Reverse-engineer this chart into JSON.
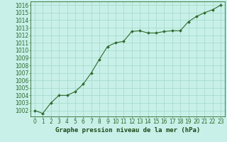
{
  "x": [
    0,
    1,
    2,
    3,
    4,
    5,
    6,
    7,
    8,
    9,
    10,
    11,
    12,
    13,
    14,
    15,
    16,
    17,
    18,
    19,
    20,
    21,
    22,
    23
  ],
  "y": [
    1002.0,
    1001.6,
    1003.0,
    1004.0,
    1004.0,
    1004.5,
    1005.5,
    1007.0,
    1008.8,
    1010.5,
    1011.0,
    1011.2,
    1012.5,
    1012.6,
    1012.3,
    1012.3,
    1012.5,
    1012.6,
    1012.6,
    1013.8,
    1014.5,
    1015.0,
    1015.4,
    1016.0
  ],
  "line_color": "#2d6a2d",
  "marker_color": "#2d6a2d",
  "bg_color": "#c8f0e8",
  "grid_color": "#a0d8c8",
  "xlabel": "Graphe pression niveau de la mer (hPa)",
  "xlabel_color": "#1a4a1a",
  "tick_color": "#2d6a2d",
  "ylim_min": 1001.2,
  "ylim_max": 1016.5,
  "ytick_min": 1002,
  "ytick_max": 1016,
  "font_size_xlabel": 6.5,
  "font_size_tick": 5.5
}
